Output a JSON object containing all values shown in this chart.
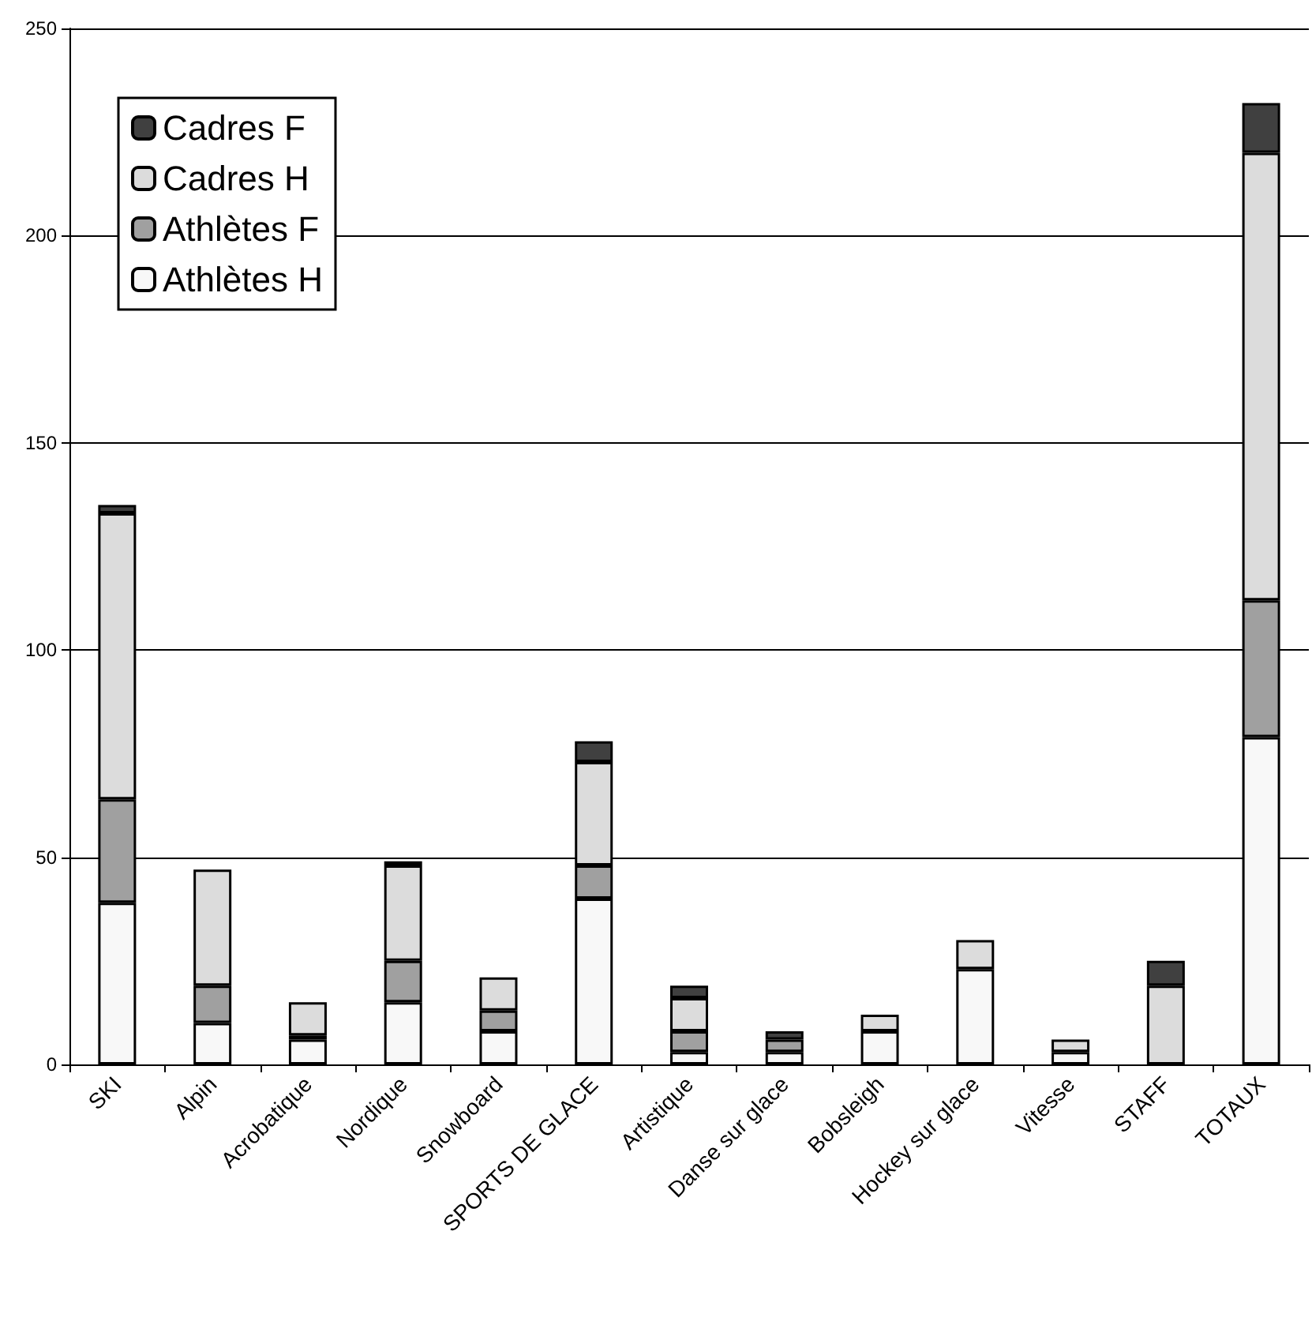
{
  "chart_data": {
    "type": "bar",
    "stacked": true,
    "categories": [
      "SKI",
      "Alpin",
      "Acrobatique",
      "Nordique",
      "Snowboard",
      "SPORTS DE GLACE",
      "Artistique",
      "Danse sur glace",
      "Bobsleigh",
      "Hockey sur glace",
      "Vitesse",
      "STAFF",
      "TOTAUX"
    ],
    "series": [
      {
        "name": "Athlètes H",
        "color": "#f8f8f8",
        "values": [
          39,
          10,
          6,
          15,
          8,
          40,
          3,
          3,
          8,
          23,
          3,
          null,
          79
        ]
      },
      {
        "name": "Athlètes F",
        "color": "#a0a0a0",
        "values": [
          25,
          9,
          1,
          10,
          5,
          8,
          5,
          3,
          null,
          null,
          null,
          null,
          33
        ]
      },
      {
        "name": "Cadres H",
        "color": "#dcdcdc",
        "values": [
          69,
          28,
          8,
          23,
          8,
          25,
          8,
          null,
          4,
          7,
          3,
          19,
          108
        ]
      },
      {
        "name": "Cadres F",
        "color": "#404040",
        "values": [
          2,
          null,
          null,
          1,
          null,
          5,
          3,
          2,
          null,
          null,
          null,
          6,
          12
        ]
      }
    ],
    "ylim": [
      0,
      250
    ],
    "yticks": [
      0,
      50,
      100,
      150,
      200,
      250
    ],
    "grid": "y",
    "legend": "top left"
  }
}
